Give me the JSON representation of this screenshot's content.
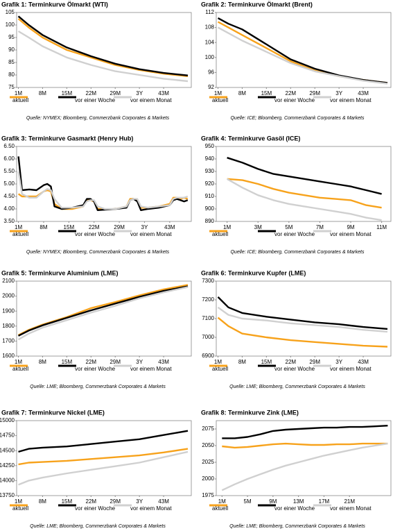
{
  "chart_data": [
    {
      "type": "line",
      "title": "Grafik 1: Terminkurve Ölmarkt (WTI)",
      "source": "Quelle: NYMEX; Bloomberg, Commerzbank Corporates & Markets",
      "x": [
        1,
        4,
        8,
        15,
        22,
        29,
        36,
        43,
        50
      ],
      "xlim": [
        0.5,
        51
      ],
      "xticks": [
        {
          "value": 1,
          "label": "1M"
        },
        {
          "value": 8,
          "label": "8M"
        },
        {
          "value": 15,
          "label": "15M"
        },
        {
          "value": 22,
          "label": "22M"
        },
        {
          "value": 29,
          "label": "29M"
        },
        {
          "value": 36,
          "label": "3Y"
        },
        {
          "value": 43,
          "label": "43M"
        }
      ],
      "ylim": [
        75,
        105
      ],
      "yticks": [
        75,
        80,
        85,
        90,
        95,
        100,
        105
      ],
      "grid": false,
      "series": [
        {
          "name": "aktuell",
          "color": "#f7a21b",
          "values": [
            102.5,
            99,
            95,
            90,
            87,
            84,
            82,
            80.5,
            79.5
          ]
        },
        {
          "name": "vor einer Woche",
          "color": "#000000",
          "values": [
            103.5,
            100,
            96,
            91,
            87.5,
            84.5,
            82.3,
            80.8,
            79.8
          ]
        },
        {
          "name": "vor einem Monat",
          "color": "#d0d0d0",
          "values": [
            97.5,
            95,
            91.5,
            87,
            84,
            81.5,
            80,
            78.5,
            77.5
          ]
        }
      ]
    },
    {
      "type": "line",
      "title": "Grafik 2: Terminkurve Ölmarkt (Brent)",
      "source": "Quelle: ICE; Bloomberg, Commerzbank Corporates & Markets",
      "x": [
        1,
        4,
        8,
        15,
        22,
        29,
        36,
        43,
        50
      ],
      "xlim": [
        0.5,
        51
      ],
      "xticks": [
        {
          "value": 1,
          "label": "1M"
        },
        {
          "value": 8,
          "label": "8M"
        },
        {
          "value": 15,
          "label": "15M"
        },
        {
          "value": 22,
          "label": "22M"
        },
        {
          "value": 29,
          "label": "29M"
        },
        {
          "value": 36,
          "label": "3Y"
        },
        {
          "value": 43,
          "label": "43M"
        }
      ],
      "ylim": [
        92,
        112
      ],
      "yticks": [
        92,
        96,
        100,
        104,
        108,
        112
      ],
      "grid": false,
      "series": [
        {
          "name": "aktuell",
          "color": "#f7a21b",
          "values": [
            109.5,
            108,
            106,
            102.5,
            99,
            96.5,
            95,
            94,
            93.2
          ]
        },
        {
          "name": "vor einer Woche",
          "color": "#000000",
          "values": [
            110.5,
            109,
            107.5,
            103.5,
            99.5,
            97,
            95.2,
            94,
            93.2
          ]
        },
        {
          "name": "vor einem Monat",
          "color": "#d0d0d0",
          "values": [
            108,
            106.5,
            104.5,
            101.5,
            98.5,
            96.3,
            95,
            93.8,
            93
          ]
        }
      ]
    },
    {
      "type": "line",
      "title": "Grafik 3: Terminkurve Gasmarkt (Henry Hub)",
      "source": "Quelle: NYMEX; Bloomberg, Commerzbank Corporates & Markets",
      "x": [
        1,
        2,
        4,
        6,
        8,
        9,
        10,
        11,
        13,
        16,
        19,
        20,
        21,
        22,
        23,
        25,
        28,
        31,
        32,
        33,
        34,
        35,
        37,
        40,
        43,
        44,
        45,
        46,
        47,
        48
      ],
      "xlim": [
        0.5,
        49
      ],
      "xticks": [
        {
          "value": 1,
          "label": "1M"
        },
        {
          "value": 8,
          "label": "8M"
        },
        {
          "value": 15,
          "label": "15M"
        },
        {
          "value": 22,
          "label": "22M"
        },
        {
          "value": 29,
          "label": "29M"
        },
        {
          "value": 36,
          "label": "3Y"
        },
        {
          "value": 43,
          "label": "43M"
        }
      ],
      "ylim": [
        3.5,
        6.5
      ],
      "yticks": [
        {
          "value": 3.5,
          "label": "3.50"
        },
        {
          "value": 4,
          "label": "4.00"
        },
        {
          "value": 4.5,
          "label": "4.50"
        },
        {
          "value": 5,
          "label": "5.00"
        },
        {
          "value": 5.5,
          "label": "5.50"
        },
        {
          "value": 6,
          "label": "6.00"
        },
        {
          "value": 6.5,
          "label": "6.50"
        }
      ],
      "grid": false,
      "series": [
        {
          "name": "aktuell",
          "color": "#f7a21b",
          "values": [
            4.6,
            4.5,
            4.5,
            4.5,
            4.7,
            4.75,
            4.7,
            4.2,
            4.0,
            4.0,
            4.1,
            4.35,
            4.35,
            4.3,
            4.0,
            3.98,
            4.0,
            4.1,
            4.4,
            4.4,
            4.35,
            4.05,
            4.05,
            4.1,
            4.2,
            4.45,
            4.45,
            4.4,
            4.45,
            4.4
          ]
        },
        {
          "name": "vor einer Woche",
          "color": "#000000",
          "values": [
            6.1,
            4.75,
            4.78,
            4.75,
            4.95,
            5.0,
            4.9,
            4.1,
            4.0,
            4.05,
            4.15,
            4.4,
            4.4,
            4.3,
            3.95,
            3.97,
            4.0,
            4.05,
            4.35,
            4.4,
            4.3,
            3.95,
            4.0,
            4.05,
            4.15,
            4.35,
            4.4,
            4.35,
            4.3,
            4.35
          ]
        },
        {
          "name": "vor einem Monat",
          "color": "#d0d0d0",
          "values": [
            5.5,
            4.6,
            4.45,
            4.45,
            4.7,
            4.8,
            4.75,
            4.4,
            4.05,
            4.05,
            4.1,
            4.3,
            4.35,
            4.35,
            4.1,
            4.0,
            4.0,
            4.1,
            4.35,
            4.4,
            4.4,
            4.1,
            4.05,
            4.1,
            4.15,
            4.4,
            4.45,
            4.45,
            4.45,
            4.5
          ]
        }
      ]
    },
    {
      "type": "line",
      "title": "Grafik 4: Terminkurve Gasöl (ICE)",
      "source": "Quelle: ICE; Bloomberg, Commerzbank Corporates & Markets",
      "x": [
        1,
        2,
        3,
        4,
        5,
        6,
        7,
        8,
        9,
        10,
        11
      ],
      "xlim": [
        0.3,
        11.6
      ],
      "xticks": [
        {
          "value": 1,
          "label": "1M"
        },
        {
          "value": 3,
          "label": "3M"
        },
        {
          "value": 5,
          "label": "5M"
        },
        {
          "value": 7,
          "label": "7M"
        },
        {
          "value": 9,
          "label": "9M"
        },
        {
          "value": 11,
          "label": "11M"
        }
      ],
      "ylim": [
        890,
        950
      ],
      "yticks": [
        890,
        900,
        910,
        920,
        930,
        940,
        950
      ],
      "grid": false,
      "series": [
        {
          "name": "aktuell",
          "color": "#f7a21b",
          "values": [
            924,
            923,
            920,
            916,
            913,
            911,
            909,
            908,
            907,
            903,
            901
          ]
        },
        {
          "name": "vor einer Woche",
          "color": "#000000",
          "values": [
            941,
            937,
            932,
            928,
            926,
            924,
            922,
            920,
            918,
            915,
            912
          ]
        },
        {
          "name": "vor einem Monat",
          "color": "#d0d0d0",
          "values": [
            924,
            917,
            911,
            907,
            904,
            902,
            900,
            898,
            896,
            893,
            891
          ]
        }
      ]
    },
    {
      "type": "line",
      "title": "Grafik 5: Terminkurve Aluminium (LME)",
      "source": "Quelle: LME; Bloomberg, Commerzbank Corporates & Markets",
      "x": [
        1,
        4,
        8,
        15,
        22,
        29,
        36,
        43,
        50
      ],
      "xlim": [
        0.5,
        51
      ],
      "xticks": [
        {
          "value": 1,
          "label": "1M"
        },
        {
          "value": 8,
          "label": "8M"
        },
        {
          "value": 15,
          "label": "15M"
        },
        {
          "value": 22,
          "label": "22M"
        },
        {
          "value": 29,
          "label": "29M"
        },
        {
          "value": 36,
          "label": "3Y"
        },
        {
          "value": 43,
          "label": "43M"
        }
      ],
      "ylim": [
        1600,
        2100
      ],
      "yticks": [
        1600,
        1700,
        1800,
        1900,
        2000,
        2100
      ],
      "grid": false,
      "series": [
        {
          "name": "aktuell",
          "color": "#f7a21b",
          "values": [
            1740,
            1775,
            1810,
            1860,
            1920,
            1960,
            2005,
            2045,
            2075
          ]
        },
        {
          "name": "vor einer Woche",
          "color": "#000000",
          "values": [
            1735,
            1770,
            1805,
            1855,
            1905,
            1950,
            1995,
            2035,
            2065
          ]
        },
        {
          "name": "vor einem Monat",
          "color": "#d0d0d0",
          "values": [
            1710,
            1750,
            1790,
            1840,
            1890,
            1935,
            1985,
            2025,
            2060
          ]
        }
      ]
    },
    {
      "type": "line",
      "title": "Grafik 6: Terminkurve Kupfer (LME)",
      "source": "Quelle: LME; Bloomberg, Commerzbank Corporates & Markets",
      "x": [
        1,
        4,
        8,
        15,
        22,
        29,
        36,
        43,
        50
      ],
      "xlim": [
        0.5,
        51
      ],
      "xticks": [
        {
          "value": 1,
          "label": "1M"
        },
        {
          "value": 8,
          "label": "8M"
        },
        {
          "value": 15,
          "label": "15M"
        },
        {
          "value": 22,
          "label": "22M"
        },
        {
          "value": 29,
          "label": "29M"
        },
        {
          "value": 36,
          "label": "3Y"
        },
        {
          "value": 43,
          "label": "43M"
        }
      ],
      "ylim": [
        6900,
        7300
      ],
      "yticks": [
        6900,
        7000,
        7100,
        7200,
        7300
      ],
      "grid": false,
      "series": [
        {
          "name": "aktuell",
          "color": "#f7a21b",
          "values": [
            7105,
            7060,
            7020,
            7000,
            6985,
            6975,
            6965,
            6955,
            6950
          ]
        },
        {
          "name": "vor einer Woche",
          "color": "#000000",
          "values": [
            7215,
            7160,
            7130,
            7110,
            7095,
            7080,
            7070,
            7055,
            7045
          ]
        },
        {
          "name": "vor einem Monat",
          "color": "#d0d0d0",
          "values": [
            7160,
            7120,
            7100,
            7090,
            7075,
            7065,
            7055,
            7040,
            7030
          ]
        }
      ]
    },
    {
      "type": "line",
      "title": "Grafik 7: Terminkurve Nickel (LME)",
      "source": "Quelle: LME; Bloomberg, Commerzbank Corporates & Markets",
      "x": [
        1,
        4,
        8,
        15,
        22,
        29,
        36,
        43,
        50
      ],
      "xlim": [
        0.5,
        51
      ],
      "xticks": [
        {
          "value": 1,
          "label": "1M"
        },
        {
          "value": 8,
          "label": "8M"
        },
        {
          "value": 15,
          "label": "15M"
        },
        {
          "value": 22,
          "label": "22M"
        },
        {
          "value": 29,
          "label": "29M"
        },
        {
          "value": 36,
          "label": "3Y"
        },
        {
          "value": 43,
          "label": "43M"
        }
      ],
      "ylim": [
        13750,
        15000
      ],
      "yticks": [
        13750,
        14000,
        14250,
        14500,
        14750,
        15000
      ],
      "grid": false,
      "series": [
        {
          "name": "aktuell",
          "color": "#f7a21b",
          "values": [
            14270,
            14300,
            14310,
            14330,
            14360,
            14390,
            14420,
            14470,
            14530
          ]
        },
        {
          "name": "vor einer Woche",
          "color": "#000000",
          "values": [
            14480,
            14530,
            14550,
            14570,
            14610,
            14650,
            14690,
            14760,
            14830
          ]
        },
        {
          "name": "vor einem Monat",
          "color": "#d0d0d0",
          "values": [
            13930,
            14000,
            14050,
            14120,
            14180,
            14240,
            14300,
            14390,
            14480
          ]
        }
      ]
    },
    {
      "type": "line",
      "title": "Grafik 8: Terminkurve Zink (LME)",
      "source": "Quelle: LME; Bloomberg, Commerzbank Corporates & Markets",
      "x": [
        1,
        3,
        5,
        7,
        9,
        11,
        13,
        15,
        17,
        19,
        21,
        23,
        25,
        27
      ],
      "xlim": [
        0.1,
        27.5
      ],
      "xticks": [
        {
          "value": 1,
          "label": "1M"
        },
        {
          "value": 5,
          "label": "5M"
        },
        {
          "value": 9,
          "label": "9M"
        },
        {
          "value": 13,
          "label": "13M"
        },
        {
          "value": 17,
          "label": "17M"
        },
        {
          "value": 21,
          "label": "21M"
        }
      ],
      "ylim": [
        1975,
        2087.5
      ],
      "yticks": [
        1975,
        2000,
        2025,
        2050,
        2075
      ],
      "grid": false,
      "series": [
        {
          "name": "aktuell",
          "color": "#f7a21b",
          "values": [
            2049,
            2047,
            2048,
            2050,
            2052,
            2053,
            2052,
            2051,
            2051,
            2052,
            2052,
            2053,
            2053,
            2053
          ]
        },
        {
          "name": "vor einer Woche",
          "color": "#000000",
          "values": [
            2061,
            2061,
            2063,
            2067,
            2072,
            2074,
            2075,
            2076,
            2077,
            2077,
            2078,
            2078,
            2079,
            2080
          ]
        },
        {
          "name": "vor einem Monat",
          "color": "#d0d0d0",
          "values": [
            1983,
            1992,
            2000,
            2007,
            2014,
            2020,
            2025,
            2030,
            2035,
            2039,
            2043,
            2047,
            2050,
            2053
          ]
        }
      ]
    }
  ]
}
